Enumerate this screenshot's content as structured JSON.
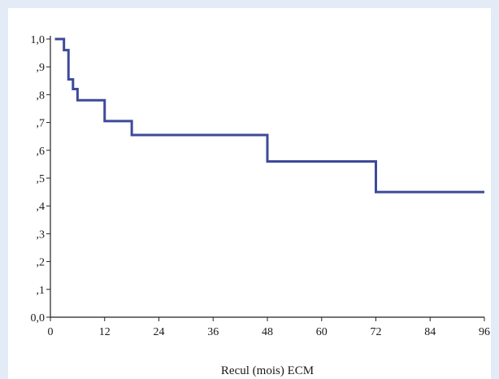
{
  "chart_data": {
    "type": "line",
    "subtype": "kaplan-meier-step",
    "xlabel": "Recul (mois) ECM",
    "ylabel": "",
    "xlim": [
      0,
      96
    ],
    "ylim": [
      0,
      1
    ],
    "x_ticks": [
      "0",
      "12",
      "24",
      "36",
      "48",
      "60",
      "72",
      "84",
      "96"
    ],
    "y_ticks": [
      "0,0",
      ",1",
      ",2",
      ",3",
      ",4",
      ",5",
      ",6",
      ",7",
      ",8",
      ",9",
      "1,0"
    ],
    "grid": false,
    "line_color": "#3d4a9a",
    "series": [
      {
        "x": [
          1,
          3,
          4,
          5,
          6,
          7,
          12,
          18,
          48,
          72,
          96
        ],
        "y": [
          1.0,
          0.96,
          0.855,
          0.82,
          0.78,
          0.78,
          0.705,
          0.655,
          0.56,
          0.45,
          0.45
        ]
      }
    ]
  }
}
